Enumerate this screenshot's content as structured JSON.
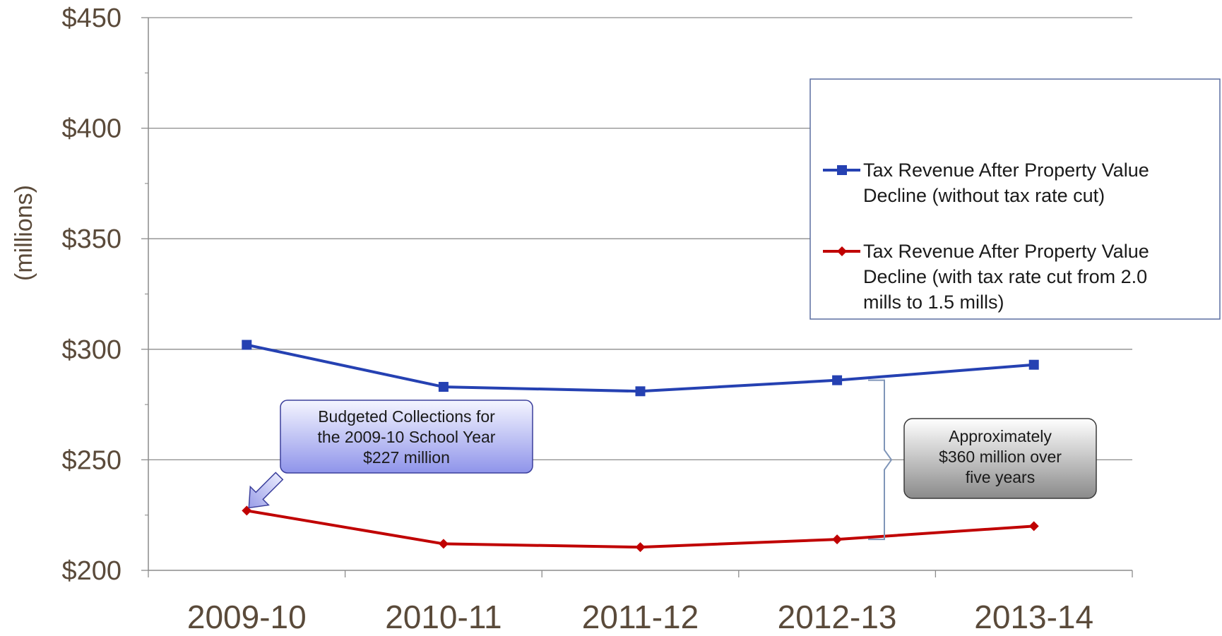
{
  "chart_data": {
    "type": "line",
    "categories": [
      "2009-10",
      "2010-11",
      "2011-12",
      "2012-13",
      "2013-14"
    ],
    "ylabel": "(millions)",
    "ylim": [
      200,
      450
    ],
    "ytick_values": [
      200,
      250,
      300,
      350,
      400,
      450
    ],
    "ytick_labels": [
      "$200",
      "$250",
      "$300",
      "$350",
      "$400",
      "$450"
    ],
    "grid": "horizontal",
    "legend_position": "right",
    "series": [
      {
        "name_lines": [
          "Tax Revenue After Property Value",
          "Decline (without tax rate cut)"
        ],
        "values": [
          302,
          283,
          281,
          286,
          293
        ],
        "color": "#2541b2",
        "marker": "square"
      },
      {
        "name_lines": [
          "Tax Revenue After Property Value",
          "Decline (with tax rate cut from 2.0",
          "mills to 1.5 mills)"
        ],
        "values": [
          227,
          212,
          210.5,
          214,
          220
        ],
        "color": "#c00000",
        "marker": "diamond"
      }
    ],
    "annotations": [
      {
        "text_lines": [
          "Budgeted Collections for",
          "the 2009-10 School Year",
          "$227 million"
        ],
        "style": "blue-callout"
      },
      {
        "text_lines": [
          "Approximately",
          "$360 million over",
          "five years"
        ],
        "style": "gray-callout"
      }
    ]
  }
}
